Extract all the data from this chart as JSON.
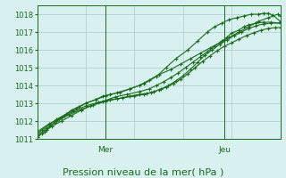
{
  "bg_color": "#d8f0f0",
  "grid_color": "#aacccc",
  "line_color": "#1a6b1a",
  "xlabel": "Pression niveau de la mer( hPa )",
  "xlabel_fontsize": 8,
  "ylim": [
    1011,
    1018.5
  ],
  "yticks": [
    1011,
    1012,
    1013,
    1014,
    1015,
    1016,
    1017,
    1018
  ],
  "day_labels": [
    "Mer",
    "Jeu"
  ],
  "day_positions": [
    0.28,
    0.77
  ],
  "series": [
    [
      0.0,
      1011.1,
      0.02,
      1011.3,
      0.04,
      1011.5,
      0.07,
      1011.9,
      0.09,
      1012.1,
      0.11,
      1012.3,
      0.14,
      1012.6,
      0.17,
      1012.8,
      0.2,
      1013.0,
      0.24,
      1013.2,
      0.27,
      1013.4,
      0.3,
      1013.5,
      0.34,
      1013.6,
      0.38,
      1013.8,
      0.42,
      1014.0,
      0.46,
      1014.3,
      0.5,
      1014.6,
      0.55,
      1014.9,
      0.59,
      1015.2,
      0.63,
      1015.5,
      0.67,
      1015.8,
      0.71,
      1016.1,
      0.75,
      1016.4,
      0.79,
      1016.7,
      0.83,
      1017.0,
      0.87,
      1017.3,
      0.91,
      1017.6,
      0.95,
      1017.8,
      0.99,
      1018.0,
      1.0,
      1017.9
    ],
    [
      0.0,
      1011.3,
      0.02,
      1011.5,
      0.05,
      1011.8,
      0.08,
      1012.1,
      0.12,
      1012.4,
      0.16,
      1012.7,
      0.2,
      1013.0,
      0.24,
      1013.2,
      0.28,
      1013.4,
      0.33,
      1013.6,
      0.38,
      1013.8,
      0.44,
      1014.1,
      0.49,
      1014.5,
      0.53,
      1015.0,
      0.57,
      1015.5,
      0.62,
      1016.0,
      0.66,
      1016.5,
      0.7,
      1017.0,
      0.73,
      1017.3,
      0.76,
      1017.5,
      0.79,
      1017.7,
      0.82,
      1017.8,
      0.85,
      1017.9,
      0.88,
      1018.0,
      0.91,
      1018.0,
      0.93,
      1018.05,
      0.95,
      1018.05,
      0.97,
      1017.95,
      1.0,
      1017.6
    ],
    [
      0.0,
      1011.1,
      0.03,
      1011.4,
      0.06,
      1011.7,
      0.1,
      1012.0,
      0.14,
      1012.3,
      0.18,
      1012.6,
      0.22,
      1012.85,
      0.27,
      1013.1,
      0.32,
      1013.35,
      0.37,
      1013.5,
      0.42,
      1013.65,
      0.46,
      1013.8,
      0.49,
      1014.0,
      0.52,
      1014.2,
      0.55,
      1014.45,
      0.58,
      1014.7,
      0.61,
      1015.0,
      0.64,
      1015.3,
      0.67,
      1015.6,
      0.7,
      1015.9,
      0.73,
      1016.2,
      0.76,
      1016.5,
      0.78,
      1016.7,
      0.8,
      1016.95,
      0.83,
      1017.1,
      0.85,
      1017.3,
      0.87,
      1017.4,
      0.9,
      1017.5,
      0.93,
      1017.55,
      0.96,
      1017.55,
      1.0,
      1017.5
    ],
    [
      0.0,
      1011.2,
      0.04,
      1011.6,
      0.08,
      1012.0,
      0.13,
      1012.35,
      0.18,
      1012.65,
      0.23,
      1012.9,
      0.28,
      1013.1,
      0.33,
      1013.25,
      0.38,
      1013.4,
      0.42,
      1013.5,
      0.45,
      1013.55,
      0.48,
      1013.65,
      0.51,
      1013.8,
      0.54,
      1014.0,
      0.57,
      1014.25,
      0.6,
      1014.55,
      0.63,
      1014.9,
      0.66,
      1015.3,
      0.69,
      1015.7,
      0.72,
      1016.0,
      0.75,
      1016.3,
      0.78,
      1016.55,
      0.81,
      1016.8,
      0.84,
      1017.0,
      0.87,
      1017.2,
      0.9,
      1017.35,
      0.93,
      1017.45,
      0.96,
      1017.5,
      1.0,
      1017.5
    ],
    [
      0.0,
      1011.4,
      0.05,
      1011.85,
      0.1,
      1012.2,
      0.15,
      1012.55,
      0.2,
      1012.85,
      0.25,
      1013.05,
      0.3,
      1013.2,
      0.35,
      1013.3,
      0.4,
      1013.4,
      0.44,
      1013.5,
      0.47,
      1013.6,
      0.5,
      1013.75,
      0.53,
      1013.9,
      0.56,
      1014.1,
      0.59,
      1014.35,
      0.62,
      1014.65,
      0.65,
      1015.0,
      0.68,
      1015.35,
      0.71,
      1015.65,
      0.74,
      1015.95,
      0.77,
      1016.2,
      0.8,
      1016.4,
      0.83,
      1016.6,
      0.86,
      1016.8,
      0.89,
      1016.95,
      0.92,
      1017.1,
      0.95,
      1017.2,
      0.98,
      1017.25,
      1.0,
      1017.25
    ]
  ]
}
